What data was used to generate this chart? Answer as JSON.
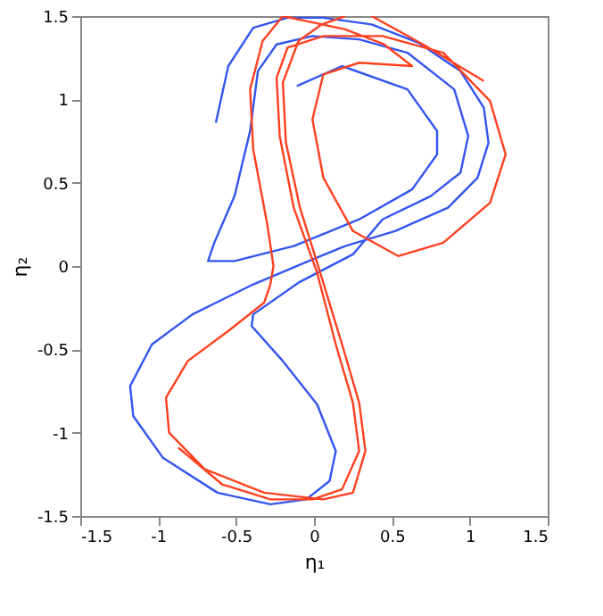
{
  "chart_data": {
    "type": "line",
    "xlabel": "η₁",
    "ylabel": "η₂",
    "xlim": [
      -1.5,
      1.5
    ],
    "ylim": [
      -1.5,
      1.5
    ],
    "xticks": [
      -1.5,
      -1,
      -0.5,
      0,
      0.5,
      1,
      1.5
    ],
    "yticks": [
      -1.5,
      -1,
      -0.5,
      0,
      0.5,
      1,
      1.5
    ],
    "grid": false,
    "legend": false,
    "marker": "none",
    "line_style": "solid",
    "series": [
      {
        "color": "#3355f0",
        "x": [
          -0.11,
          0.18,
          0.6,
          0.79,
          0.79,
          0.63,
          0.29,
          -0.13,
          -0.51,
          -0.68,
          -0.64,
          -0.51,
          -0.41,
          -0.36,
          -0.24,
          -0.01,
          0.29,
          0.6,
          0.9,
          0.99,
          0.94,
          0.75,
          0.44,
          0.25,
          -0.1,
          -0.39,
          -0.4,
          -0.2,
          0.02,
          0.14,
          0.1,
          -0.05,
          -0.28,
          -0.62,
          -0.97,
          -1.16,
          -1.18,
          -1.04,
          -0.78,
          -0.39,
          -0.01,
          0.2,
          0.52,
          0.86,
          1.05,
          1.12,
          1.09,
          0.94,
          0.67,
          0.37,
          0.06,
          -0.17,
          -0.39,
          -0.55,
          -0.63
        ],
        "values": [
          1.08,
          1.2,
          1.06,
          0.81,
          0.67,
          0.46,
          0.28,
          0.12,
          0.03,
          0.03,
          0.14,
          0.42,
          0.81,
          1.17,
          1.33,
          1.38,
          1.36,
          1.28,
          1.06,
          0.78,
          0.56,
          0.42,
          0.28,
          0.07,
          -0.1,
          -0.29,
          -0.36,
          -0.57,
          -0.83,
          -1.11,
          -1.29,
          -1.4,
          -1.43,
          -1.36,
          -1.15,
          -0.9,
          -0.72,
          -0.47,
          -0.29,
          -0.11,
          0.04,
          0.12,
          0.21,
          0.35,
          0.53,
          0.74,
          0.95,
          1.17,
          1.34,
          1.45,
          1.49,
          1.49,
          1.43,
          1.2,
          0.86
        ]
      },
      {
        "color": "#ff4020",
        "x": [
          -0.87,
          -0.59,
          -0.28,
          -0.01,
          0.18,
          0.29,
          0.25,
          0.14,
          0.02,
          -0.13,
          -0.22,
          -0.24,
          -0.17,
          0.06,
          0.44,
          0.83,
          1.13,
          1.23,
          1.13,
          0.83,
          0.54,
          0.25,
          0.06,
          -0.01,
          0.06,
          0.29,
          0.63,
          0.45,
          0.2,
          -0.05,
          -0.2,
          -0.33,
          -0.41,
          -0.39,
          -0.3,
          -0.26,
          -0.28,
          -0.32,
          -0.55,
          -0.81,
          -0.95,
          -0.93,
          -0.7,
          -0.32,
          0.06,
          0.25,
          0.33,
          0.29,
          0.18,
          0.04,
          -0.09,
          -0.18,
          -0.2,
          -0.1,
          0.05,
          0.2,
          0.28,
          0.37,
          0.7,
          1.09
        ],
        "values": [
          -1.09,
          -1.31,
          -1.4,
          -1.4,
          -1.34,
          -1.11,
          -0.82,
          -0.47,
          -0.04,
          0.35,
          0.78,
          1.13,
          1.31,
          1.38,
          1.38,
          1.28,
          0.99,
          0.67,
          0.38,
          0.14,
          0.06,
          0.21,
          0.53,
          0.88,
          1.15,
          1.22,
          1.2,
          1.33,
          1.42,
          1.47,
          1.5,
          1.35,
          1.06,
          0.7,
          0.25,
          0.0,
          -0.11,
          -0.22,
          -0.39,
          -0.57,
          -0.79,
          -1.0,
          -1.22,
          -1.36,
          -1.4,
          -1.36,
          -1.11,
          -0.82,
          -0.47,
          -0.04,
          0.35,
          0.74,
          1.1,
          1.35,
          1.45,
          1.5,
          null,
          1.5,
          1.33,
          1.11
        ]
      }
    ]
  }
}
